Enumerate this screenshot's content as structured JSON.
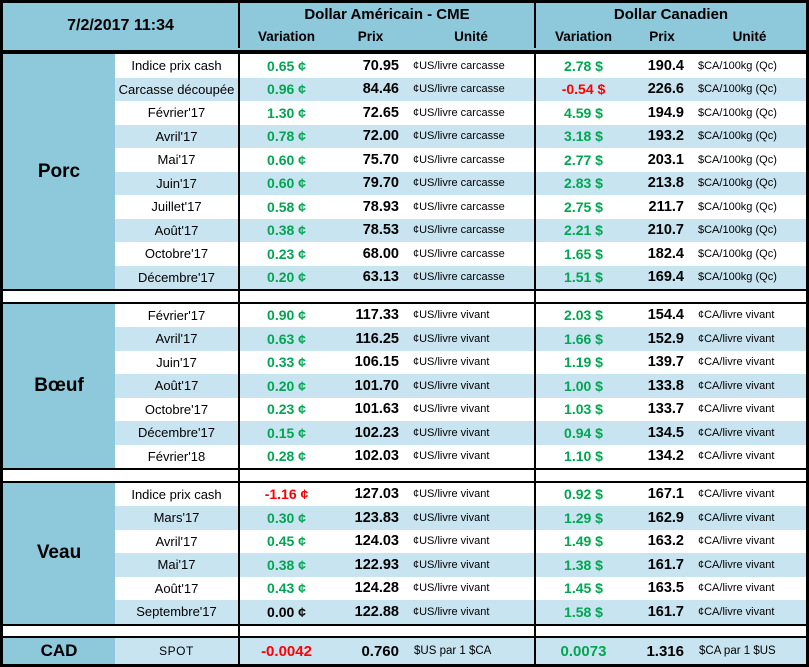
{
  "colors": {
    "header-blue": "#8DC8DB",
    "stripe-blue": "#C8E4F0",
    "positive-green": "#00A651",
    "negative-red": "#FF0000"
  },
  "chart_data": {
    "type": "table",
    "title": "7/2/2017 11:34",
    "header": {
      "datetime": "7/2/2017 11:34",
      "us_title": "Dollar Américain - CME",
      "ca_title": "Dollar Canadien",
      "col_variation": "Variation",
      "col_prix": "Prix",
      "col_unite": "Unité"
    },
    "sections": [
      {
        "name": "Porc",
        "rows": [
          {
            "label": "Indice prix cash",
            "us": [
              "0.65 ¢",
              "70.95",
              "¢US/livre carcasse"
            ],
            "ca": [
              "2.78 $",
              "190.4",
              "$CA/100kg (Qc)"
            ]
          },
          {
            "label": "Carcasse découpée",
            "us": [
              "0.96 ¢",
              "84.46",
              "¢US/livre carcasse"
            ],
            "ca": [
              "-0.54 $",
              "226.6",
              "$CA/100kg (Qc)"
            ]
          },
          {
            "label": "Février'17",
            "us": [
              "1.30 ¢",
              "72.65",
              "¢US/livre carcasse"
            ],
            "ca": [
              "4.59 $",
              "194.9",
              "$CA/100kg (Qc)"
            ]
          },
          {
            "label": "Avril'17",
            "us": [
              "0.78 ¢",
              "72.00",
              "¢US/livre carcasse"
            ],
            "ca": [
              "3.18 $",
              "193.2",
              "$CA/100kg (Qc)"
            ]
          },
          {
            "label": "Mai'17",
            "us": [
              "0.60 ¢",
              "75.70",
              "¢US/livre carcasse"
            ],
            "ca": [
              "2.77 $",
              "203.1",
              "$CA/100kg (Qc)"
            ]
          },
          {
            "label": "Juin'17",
            "us": [
              "0.60 ¢",
              "79.70",
              "¢US/livre carcasse"
            ],
            "ca": [
              "2.83 $",
              "213.8",
              "$CA/100kg (Qc)"
            ]
          },
          {
            "label": "Juillet'17",
            "us": [
              "0.58 ¢",
              "78.93",
              "¢US/livre carcasse"
            ],
            "ca": [
              "2.75 $",
              "211.7",
              "$CA/100kg (Qc)"
            ]
          },
          {
            "label": "Août'17",
            "us": [
              "0.38 ¢",
              "78.53",
              "¢US/livre carcasse"
            ],
            "ca": [
              "2.21 $",
              "210.7",
              "$CA/100kg (Qc)"
            ]
          },
          {
            "label": "Octobre'17",
            "us": [
              "0.23 ¢",
              "68.00",
              "¢US/livre carcasse"
            ],
            "ca": [
              "1.65 $",
              "182.4",
              "$CA/100kg (Qc)"
            ]
          },
          {
            "label": "Décembre'17",
            "us": [
              "0.20 ¢",
              "63.13",
              "¢US/livre carcasse"
            ],
            "ca": [
              "1.51 $",
              "169.4",
              "$CA/100kg (Qc)"
            ]
          }
        ]
      },
      {
        "name": "Bœuf",
        "rows": [
          {
            "label": "Février'17",
            "us": [
              "0.90 ¢",
              "117.33",
              "¢US/livre vivant"
            ],
            "ca": [
              "2.03 $",
              "154.4",
              "¢CA/livre vivant"
            ]
          },
          {
            "label": "Avril'17",
            "us": [
              "0.63 ¢",
              "116.25",
              "¢US/livre vivant"
            ],
            "ca": [
              "1.66 $",
              "152.9",
              "¢CA/livre vivant"
            ]
          },
          {
            "label": "Juin'17",
            "us": [
              "0.33 ¢",
              "106.15",
              "¢US/livre vivant"
            ],
            "ca": [
              "1.19 $",
              "139.7",
              "¢CA/livre vivant"
            ]
          },
          {
            "label": "Août'17",
            "us": [
              "0.20 ¢",
              "101.70",
              "¢US/livre vivant"
            ],
            "ca": [
              "1.00 $",
              "133.8",
              "¢CA/livre vivant"
            ]
          },
          {
            "label": "Octobre'17",
            "us": [
              "0.23 ¢",
              "101.63",
              "¢US/livre vivant"
            ],
            "ca": [
              "1.03 $",
              "133.7",
              "¢CA/livre vivant"
            ]
          },
          {
            "label": "Décembre'17",
            "us": [
              "0.15 ¢",
              "102.23",
              "¢US/livre vivant"
            ],
            "ca": [
              "0.94 $",
              "134.5",
              "¢CA/livre vivant"
            ]
          },
          {
            "label": "Février'18",
            "us": [
              "0.28 ¢",
              "102.03",
              "¢US/livre vivant"
            ],
            "ca": [
              "1.10 $",
              "134.2",
              "¢CA/livre vivant"
            ]
          }
        ]
      },
      {
        "name": "Veau",
        "rows": [
          {
            "label": "Indice prix cash",
            "us": [
              "-1.16 ¢",
              "127.03",
              "¢US/livre vivant"
            ],
            "ca": [
              "0.92 $",
              "167.1",
              "¢CA/livre vivant"
            ]
          },
          {
            "label": "Mars'17",
            "us": [
              "0.30 ¢",
              "123.83",
              "¢US/livre vivant"
            ],
            "ca": [
              "1.29 $",
              "162.9",
              "¢CA/livre vivant"
            ]
          },
          {
            "label": "Avril'17",
            "us": [
              "0.45 ¢",
              "124.03",
              "¢US/livre vivant"
            ],
            "ca": [
              "1.49 $",
              "163.2",
              "¢CA/livre vivant"
            ]
          },
          {
            "label": "Mai'17",
            "us": [
              "0.38 ¢",
              "122.93",
              "¢US/livre vivant"
            ],
            "ca": [
              "1.38 $",
              "161.7",
              "¢CA/livre vivant"
            ]
          },
          {
            "label": "Août'17",
            "us": [
              "0.43 ¢",
              "124.28",
              "¢US/livre vivant"
            ],
            "ca": [
              "1.45 $",
              "163.5",
              "¢CA/livre vivant"
            ]
          },
          {
            "label": "Septembre'17",
            "us": [
              "0.00 ¢",
              "122.88",
              "¢US/livre vivant"
            ],
            "ca": [
              "1.58 $",
              "161.7",
              "¢CA/livre vivant"
            ]
          }
        ]
      }
    ],
    "cad": {
      "name": "CAD",
      "label": "SPOT",
      "us": [
        "-0.0042",
        "0.760",
        "$US par 1 $CA"
      ],
      "ca": [
        "0.0073",
        "1.316",
        "$CA par 1 $US"
      ]
    }
  }
}
